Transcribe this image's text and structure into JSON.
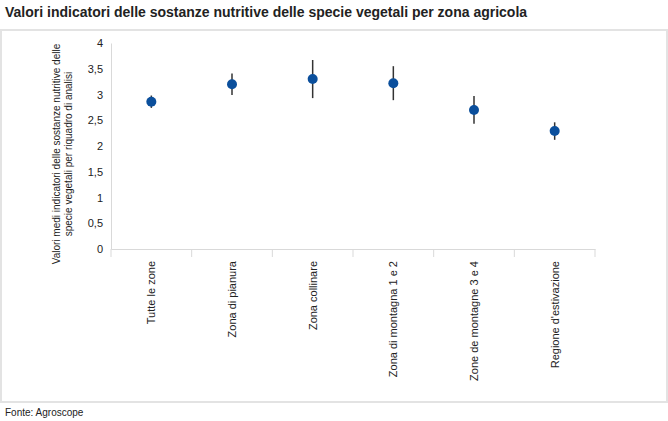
{
  "chart_data": {
    "type": "scatter",
    "title": "Valori indicatori delle sostanze nutritive delle specie vegetali per zona agricola",
    "y_label": "Valori medi indicatori delle sostanze nutritive delle specie vegetali per riquadro di analisi",
    "source": "Fonte: Agroscope",
    "categories": [
      "Tutte le zone",
      "Zona di pianura",
      "Zona collinare",
      "Zona di montagna 1 e 2",
      "Zone de montagne 3 e 4",
      "Regione d'estivazione"
    ],
    "values": [
      2.86,
      3.2,
      3.3,
      3.22,
      2.7,
      2.29
    ],
    "errors": [
      0.12,
      0.21,
      0.37,
      0.33,
      0.27,
      0.17
    ],
    "color": "#0b4f9c",
    "marker": "circle",
    "ylim": [
      0,
      4
    ],
    "yticks": [
      0,
      {
        "value": 0.5,
        "label": "0,5"
      },
      1,
      {
        "value": 1.5,
        "label": "1,5"
      },
      2,
      {
        "value": 2.5,
        "label": "2,5"
      },
      3,
      {
        "value": 3.5,
        "label": "3,5"
      },
      4
    ],
    "grid": false
  }
}
